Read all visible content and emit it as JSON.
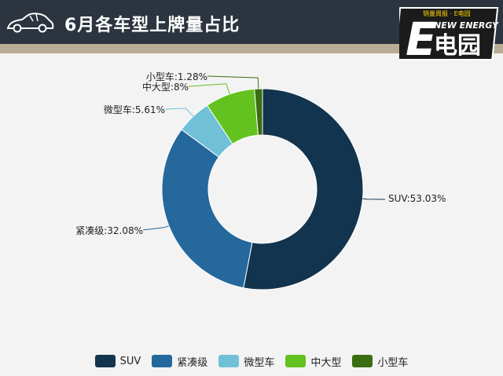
{
  "header": {
    "title": "6月各车型上牌量占比"
  },
  "logo": {
    "tagline": "销量周报 · E电园",
    "brand_line": "NEW ENERGY",
    "mark": "E电园"
  },
  "colors": {
    "header_bg": "#2c3440",
    "band": "#b8ad97",
    "suv": "#12344e",
    "compact": "#24689c",
    "mini": "#70c1d8",
    "midlarge": "#63c21f",
    "small": "#3b6d12"
  },
  "chart_data": {
    "type": "pie",
    "variant": "donut",
    "title": "6月各车型上牌量占比",
    "legend_position": "bottom",
    "slices": [
      {
        "name": "SUV",
        "value": 53.03,
        "label": "SUV:53.03%",
        "color": "#12344e"
      },
      {
        "name": "紧凑级",
        "value": 32.08,
        "label": "紧凑级:32.08%",
        "color": "#24689c"
      },
      {
        "name": "微型车",
        "value": 5.61,
        "label": "微型车:5.61%",
        "color": "#70c1d8"
      },
      {
        "name": "中大型",
        "value": 8,
        "label": "中大型:8%",
        "color": "#63c21f"
      },
      {
        "name": "小型车",
        "value": 1.28,
        "label": "小型车:1.28%",
        "color": "#3b6d12"
      }
    ]
  }
}
